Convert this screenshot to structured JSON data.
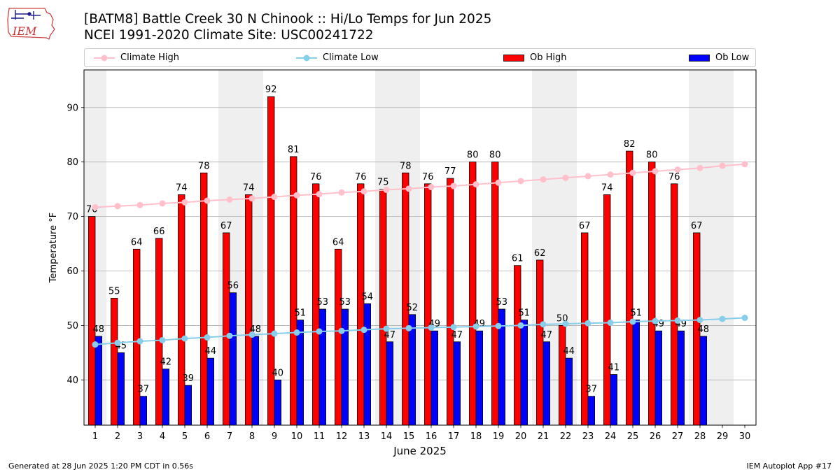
{
  "header": {
    "title_line1": "[BATM8] Battle Creek 30 N Chinook :: Hi/Lo Temps for Jun 2025",
    "title_line2": "NCEI 1991-2020 Climate Site: USC00241722",
    "logo_text": "IEM"
  },
  "footer": {
    "left": "Generated at 28 Jun 2025 1:20 PM CDT in 0.56s",
    "right": "IEM Autoplot App #17"
  },
  "legend": [
    {
      "label": "Climate High",
      "kind": "line",
      "color": "#ffc0cb"
    },
    {
      "label": "Climate Low",
      "kind": "line",
      "color": "#87ceeb"
    },
    {
      "label": "Ob High",
      "kind": "bar",
      "color": "#ff0000"
    },
    {
      "label": "Ob Low",
      "kind": "bar",
      "color": "#0000ff"
    }
  ],
  "chart_data": {
    "type": "bar",
    "title": "[BATM8] Battle Creek 30 N Chinook :: Hi/Lo Temps for Jun 2025",
    "subtitle": "NCEI 1991-2020 Climate Site: USC00241722",
    "xlabel": "June 2025",
    "ylabel": "Temperature °F",
    "ylim": [
      31.7,
      96.9
    ],
    "yticks": [
      40,
      50,
      60,
      70,
      80,
      90
    ],
    "grid": "horizontal",
    "legend_position": "top",
    "weekend_shading": [
      [
        1,
        1
      ],
      [
        7,
        8
      ],
      [
        14,
        15
      ],
      [
        21,
        22
      ],
      [
        28,
        29
      ]
    ],
    "shade_color": "#efefef",
    "categories": [
      1,
      2,
      3,
      4,
      5,
      6,
      7,
      8,
      9,
      10,
      11,
      12,
      13,
      14,
      15,
      16,
      17,
      18,
      19,
      20,
      21,
      22,
      23,
      24,
      25,
      26,
      27,
      28,
      29,
      30
    ],
    "bar_series": [
      {
        "name": "Ob High",
        "color": "#ff0000",
        "values": [
          70,
          55,
          64,
          66,
          74,
          78,
          67,
          74,
          92,
          81,
          76,
          64,
          76,
          75,
          78,
          76,
          77,
          80,
          80,
          61,
          62,
          50,
          67,
          74,
          82,
          80,
          76,
          67,
          null,
          null
        ]
      },
      {
        "name": "Ob Low",
        "color": "#0000ff",
        "values": [
          48,
          45,
          37,
          42,
          39,
          44,
          56,
          48,
          40,
          51,
          53,
          53,
          54,
          47,
          52,
          49,
          47,
          49,
          53,
          51,
          47,
          44,
          37,
          41,
          51,
          49,
          49,
          48,
          null,
          null
        ]
      }
    ],
    "line_series": [
      {
        "name": "Climate High",
        "color": "#ffc0cb",
        "values": [
          71.7,
          71.9,
          72.1,
          72.4,
          72.6,
          72.9,
          73.1,
          73.3,
          73.6,
          73.9,
          74.1,
          74.4,
          74.6,
          74.9,
          75.1,
          75.4,
          75.6,
          75.9,
          76.2,
          76.5,
          76.8,
          77.1,
          77.4,
          77.7,
          78.0,
          78.3,
          78.6,
          78.9,
          79.3,
          79.6
        ]
      },
      {
        "name": "Climate Low",
        "color": "#87ceeb",
        "values": [
          46.5,
          46.8,
          47.1,
          47.3,
          47.6,
          47.8,
          48.1,
          48.3,
          48.5,
          48.7,
          48.9,
          49.0,
          49.2,
          49.4,
          49.5,
          49.6,
          49.7,
          49.8,
          49.9,
          50.0,
          50.2,
          50.3,
          50.4,
          50.5,
          50.7,
          50.8,
          50.9,
          51.0,
          51.2,
          51.4
        ]
      }
    ]
  }
}
